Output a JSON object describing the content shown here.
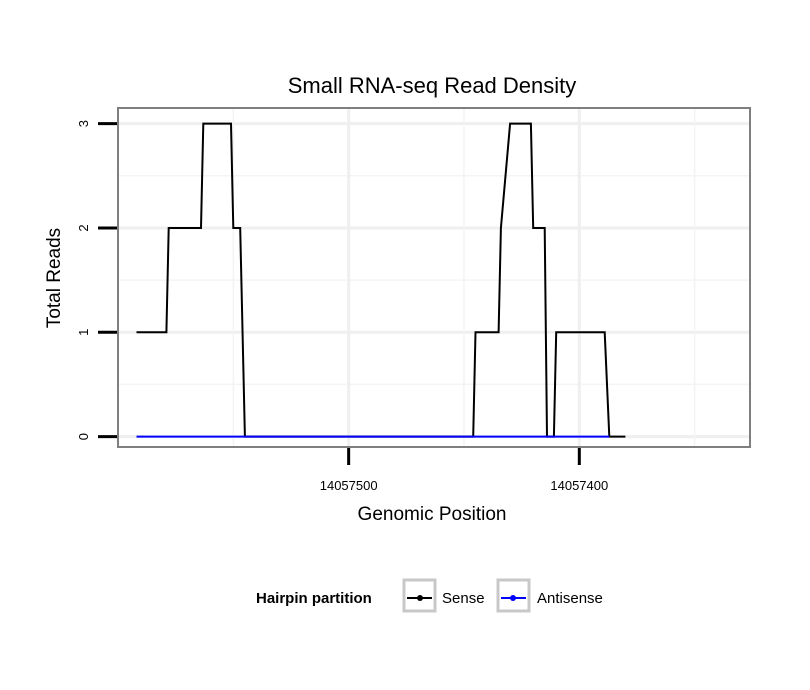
{
  "chart_data": {
    "type": "line",
    "title": "Small RNA-seq Read Density",
    "xlabel": "Genomic Position",
    "ylabel": "Total Reads",
    "x_reversed": true,
    "xlim": [
      14057600,
      14057326
    ],
    "ylim": [
      -0.1,
      3.15
    ],
    "x_ticks": [
      {
        "value": 14057500,
        "label": "14057500"
      },
      {
        "value": 14057400,
        "label": "14057400"
      }
    ],
    "y_ticks": [
      {
        "value": 0,
        "label": "0"
      },
      {
        "value": 1,
        "label": "1"
      },
      {
        "value": 2,
        "label": "2"
      },
      {
        "value": 3,
        "label": "3"
      }
    ],
    "grid": true,
    "series": [
      {
        "name": "Sense",
        "color": "#000000",
        "points": [
          [
            14057592,
            1
          ],
          [
            14057579,
            1
          ],
          [
            14057578,
            2
          ],
          [
            14057564,
            2
          ],
          [
            14057563,
            3
          ],
          [
            14057551,
            3
          ],
          [
            14057550,
            2
          ],
          [
            14057547,
            2
          ],
          [
            14057545,
            0
          ],
          [
            14057446,
            0
          ],
          [
            14057445,
            1
          ],
          [
            14057435,
            1
          ],
          [
            14057434,
            2
          ],
          [
            14057430,
            3
          ],
          [
            14057421,
            3
          ],
          [
            14057420,
            2
          ],
          [
            14057415,
            2
          ],
          [
            14057414,
            0
          ],
          [
            14057411,
            0
          ],
          [
            14057410,
            1
          ],
          [
            14057389,
            1
          ],
          [
            14057387,
            0
          ],
          [
            14057380,
            0
          ]
        ]
      },
      {
        "name": "Antisense",
        "color": "#0000ff",
        "points": [
          [
            14057592,
            0
          ],
          [
            14057387,
            0
          ]
        ]
      }
    ],
    "legend": {
      "title": "Hairpin partition",
      "position": "bottom",
      "entries": [
        {
          "label": "Sense",
          "color": "#000000"
        },
        {
          "label": "Antisense",
          "color": "#0000ff"
        }
      ]
    }
  }
}
